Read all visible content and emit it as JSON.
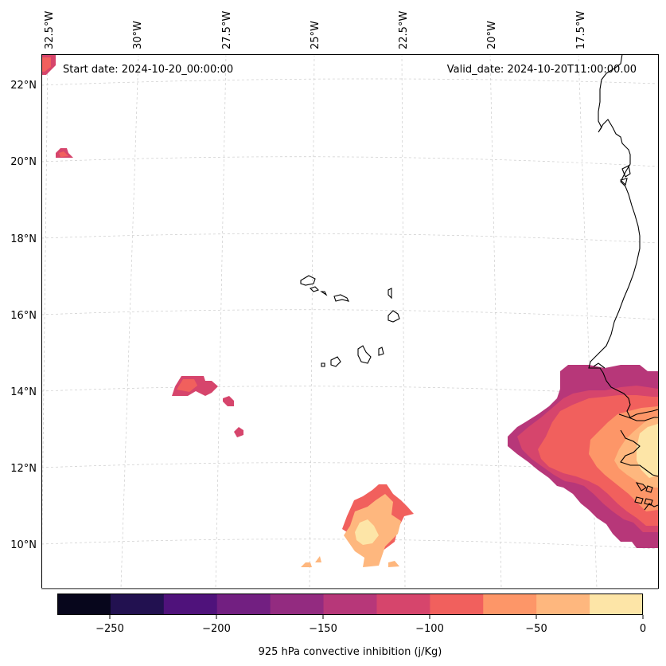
{
  "map": {
    "start_date_text": "Start date: 2024-10-20_00:00:00",
    "valid_date_text": "Valid_date: 2024-10-20T11:00:00.00",
    "lon_labels": [
      "32.5°W",
      "30°W",
      "27.5°W",
      "25°W",
      "22.5°W",
      "20°W",
      "17.5°W"
    ],
    "lat_labels": [
      "22°N",
      "20°N",
      "18°N",
      "16°N",
      "14°N",
      "12°N",
      "10°N"
    ]
  },
  "colorbar": {
    "title": "925 hPa convective inhibition (j/Kg)",
    "tick_labels": [
      "−250",
      "−200",
      "−150",
      "−100",
      "−50",
      "0"
    ],
    "levels": [
      -275,
      -250,
      -225,
      -200,
      -175,
      -150,
      -125,
      -100,
      -75,
      -50,
      -25,
      0
    ],
    "colors": [
      "#07061c",
      "#221150",
      "#4f127b",
      "#721f81",
      "#932b80",
      "#b73779",
      "#d6456c",
      "#f1605d",
      "#fd9668",
      "#feb77e",
      "#fde5a7"
    ]
  },
  "colors": {
    "coastline": "#000000",
    "gridline": "#cccccc",
    "frame": "#000000"
  }
}
